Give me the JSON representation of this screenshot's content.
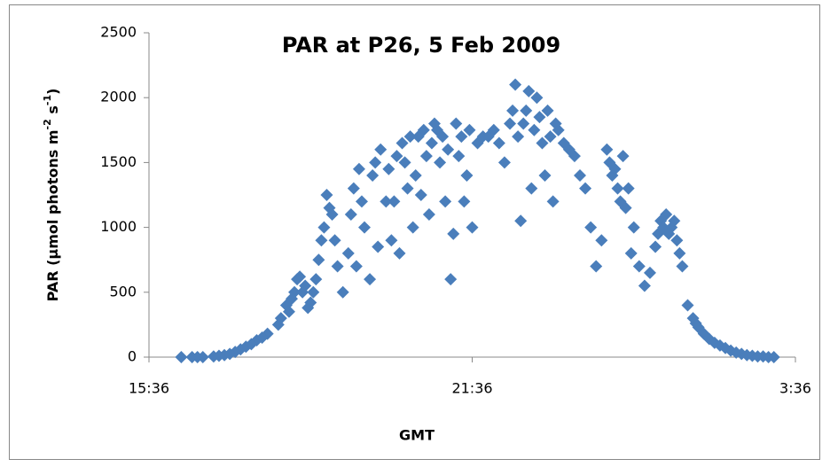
{
  "chart_data": {
    "type": "scatter",
    "title": "PAR at P26, 5 Feb 2009",
    "x_label": "GMT",
    "y_label": [
      "PAR (µmol photons m",
      "-2",
      " s",
      "-1",
      ")"
    ],
    "xlim": [
      15.6,
      27.6
    ],
    "xticks": [
      {
        "value": 15.6,
        "label": "15:36"
      },
      {
        "value": 21.6,
        "label": "21:36"
      },
      {
        "value": 27.6,
        "label": "3:36"
      }
    ],
    "ylim": [
      0,
      2500
    ],
    "yticks": [
      0,
      500,
      1000,
      1500,
      2000,
      2500
    ],
    "grid": false,
    "series": [
      {
        "name": "PAR",
        "color": "#4a7ebb",
        "x": [
          16.2,
          16.4,
          16.6,
          16.8,
          17.0,
          17.2,
          17.4,
          17.6,
          17.8,
          18.0,
          18.2,
          18.3,
          18.4,
          18.5,
          18.6,
          18.7,
          18.8,
          18.9,
          19.0,
          19.1,
          19.2,
          19.3,
          19.4,
          19.5,
          19.6,
          19.7,
          19.8,
          19.9,
          20.0,
          20.1,
          20.2,
          20.3,
          20.4,
          20.5,
          20.6,
          20.7,
          20.8,
          20.9,
          21.0,
          21.1,
          21.2,
          21.3,
          21.4,
          21.5,
          21.6,
          21.7,
          21.8,
          21.9,
          22.0,
          22.1,
          22.2,
          22.3,
          22.4,
          22.5,
          22.6,
          22.7,
          22.8,
          22.9,
          23.0,
          23.1,
          23.2,
          23.3,
          23.4,
          23.5,
          23.6,
          23.7,
          23.8,
          23.9,
          24.0,
          24.1,
          24.2,
          24.3,
          24.4,
          24.5,
          24.6,
          24.7,
          24.8,
          24.9,
          25.0,
          25.1,
          25.2,
          25.3,
          25.4,
          25.5,
          25.6,
          25.7,
          25.8,
          25.9,
          26.0,
          26.2,
          26.4,
          26.6,
          26.8,
          27.0,
          27.2,
          18.05,
          18.15,
          18.25,
          18.35,
          18.45,
          18.55,
          18.65,
          18.75,
          18.85,
          18.95,
          19.05,
          19.35,
          19.45,
          19.55,
          19.75,
          19.85,
          20.05,
          20.15,
          20.25,
          20.35,
          20.45,
          20.55,
          20.65,
          20.75,
          20.85,
          20.95,
          21.05,
          21.15,
          21.25,
          21.35,
          21.45,
          21.55,
          22.35,
          22.45,
          22.55,
          22.65,
          22.75,
          22.85,
          22.95,
          23.05,
          23.15,
          24.15,
          24.25,
          24.35,
          24.45,
          24.55,
          25.05,
          25.15,
          25.25,
          25.35,
          25.45,
          16.5,
          16.9,
          17.1,
          17.3,
          17.5,
          17.7,
          25.75,
          26.1,
          26.3,
          26.5,
          26.7,
          26.9,
          27.1
        ],
        "values": [
          0,
          0,
          0,
          5,
          15,
          40,
          80,
          130,
          180,
          250,
          350,
          500,
          620,
          550,
          420,
          600,
          900,
          1250,
          1100,
          700,
          500,
          800,
          1300,
          1450,
          1000,
          600,
          1500,
          1600,
          1200,
          900,
          1550,
          1650,
          1300,
          1000,
          1700,
          1750,
          1100,
          1800,
          1500,
          1200,
          600,
          1800,
          1700,
          1400,
          1000,
          1650,
          1700,
          1700,
          1750,
          1650,
          1500,
          1800,
          2100,
          1050,
          1900,
          1300,
          2000,
          1650,
          1900,
          1200,
          1750,
          1650,
          1600,
          1550,
          1400,
          1300,
          1000,
          700,
          900,
          1600,
          1400,
          1300,
          1550,
          1300,
          1000,
          700,
          550,
          650,
          850,
          1050,
          1100,
          1000,
          900,
          700,
          400,
          300,
          230,
          180,
          140,
          90,
          50,
          25,
          10,
          5,
          0,
          300,
          400,
          450,
          600,
          500,
          380,
          500,
          750,
          1000,
          1150,
          900,
          1100,
          700,
          1200,
          1400,
          850,
          1450,
          1200,
          800,
          1500,
          1700,
          1400,
          1250,
          1550,
          1650,
          1750,
          1700,
          1600,
          950,
          1550,
          1200,
          1750,
          1900,
          1700,
          1800,
          2050,
          1750,
          1850,
          1400,
          1700,
          1800,
          1500,
          1450,
          1200,
          1150,
          800,
          950,
          1000,
          950,
          1050,
          800,
          0,
          10,
          25,
          60,
          100,
          150,
          260,
          110,
          70,
          35,
          15,
          5,
          0
        ]
      }
    ]
  }
}
